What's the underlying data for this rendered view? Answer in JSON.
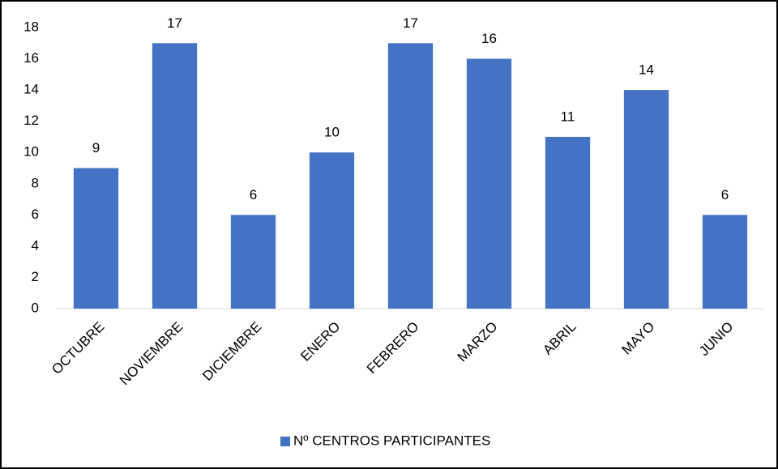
{
  "chart_data": {
    "type": "bar",
    "categories": [
      "OCTUBRE",
      "NOVIEMBRE",
      "DICIEMBRE",
      "ENERO",
      "FEBRERO",
      "MARZO",
      "ABRIL",
      "MAYO",
      "JUNIO"
    ],
    "series": [
      {
        "name": "Nº CENTROS PARTICIPANTES",
        "color": "#4472c4",
        "values": [
          9,
          17,
          6,
          10,
          17,
          16,
          11,
          14,
          6
        ]
      }
    ],
    "ylim": [
      0,
      18
    ],
    "yticks": [
      0,
      2,
      4,
      6,
      8,
      10,
      12,
      14,
      16,
      18
    ],
    "grid": false,
    "legend": "bottom"
  }
}
